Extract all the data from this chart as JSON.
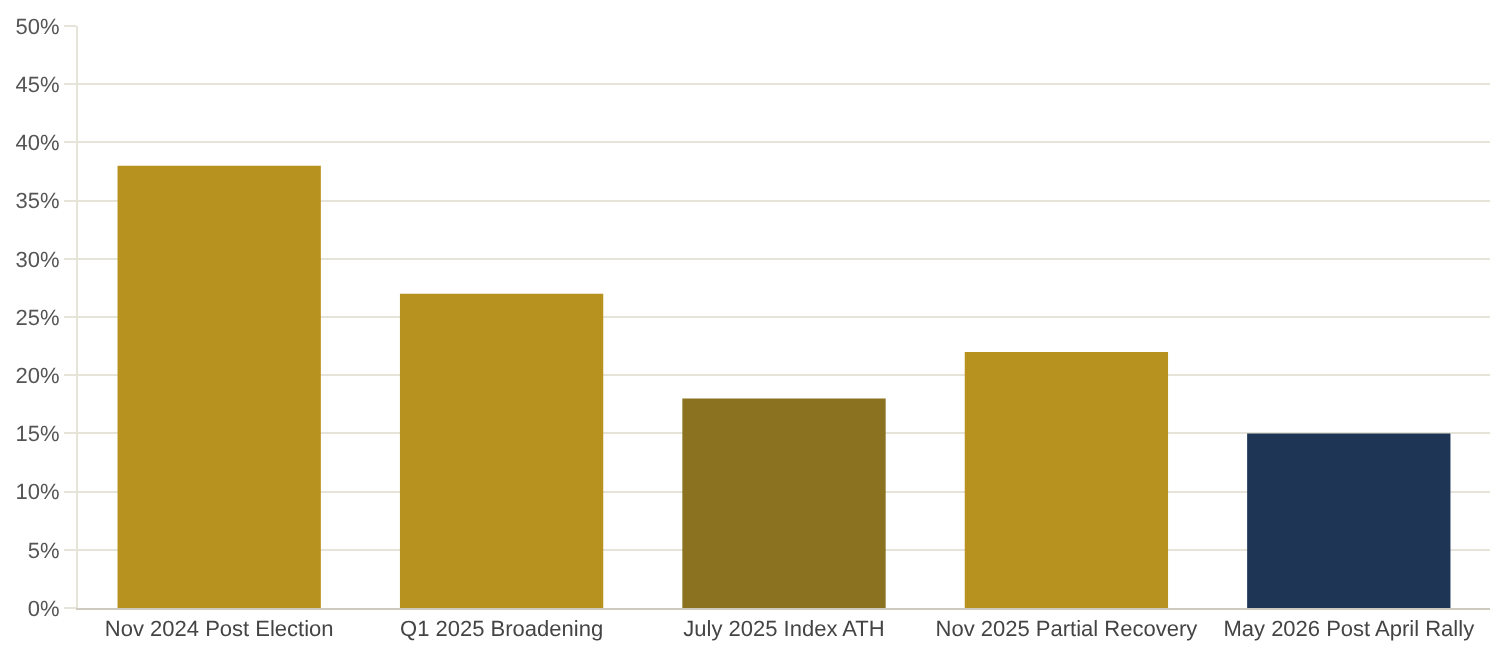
{
  "chart_data": {
    "type": "bar",
    "categories": [
      "Nov 2024 Post Election",
      "Q1 2025 Broadening",
      "July 2025 Index ATH",
      "Nov 2025 Partial Recovery",
      "May 2026 Post April Rally"
    ],
    "values": [
      38,
      27,
      18,
      22,
      15
    ],
    "colors": [
      "#b8921f",
      "#b8921f",
      "#8b7220",
      "#b8921f",
      "#1e3556"
    ],
    "ylim": [
      0,
      50
    ],
    "yticks": [
      {
        "value": 0,
        "label": "0%"
      },
      {
        "value": 5,
        "label": "5%"
      },
      {
        "value": 10,
        "label": "10%"
      },
      {
        "value": 15,
        "label": "15%"
      },
      {
        "value": 20,
        "label": "20%"
      },
      {
        "value": 25,
        "label": "25%"
      },
      {
        "value": 30,
        "label": "30%"
      },
      {
        "value": 35,
        "label": "35%"
      },
      {
        "value": 40,
        "label": "40%"
      },
      {
        "value": 45,
        "label": "45%"
      },
      {
        "value": 50,
        "label": "50%"
      }
    ],
    "grid": "y"
  }
}
